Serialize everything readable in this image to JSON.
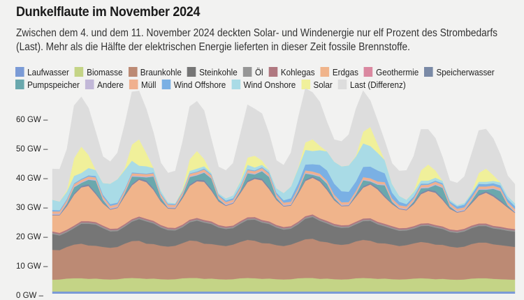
{
  "title": "Dunkelflaute im November 2024",
  "subtitle": "Zwischen dem 4. und dem 11. November 2024 deckten Solar- und Windenergie nur elf Prozent des Strombedarfs (Last). Mehr als die Hälfte der elektrischen Energie lieferten in dieser Zeit fossile Brennstoffe.",
  "legend": [
    {
      "label": "Laufwasser",
      "color": "#7b9bd6"
    },
    {
      "label": "Biomasse",
      "color": "#c4d486"
    },
    {
      "label": "Braunkohle",
      "color": "#bc8a74"
    },
    {
      "label": "Steinkohle",
      "color": "#767676"
    },
    {
      "label": "Öl",
      "color": "#969696"
    },
    {
      "label": "Kohlegas",
      "color": "#b07880"
    },
    {
      "label": "Erdgas",
      "color": "#f0b48b"
    },
    {
      "label": "Geothermie",
      "color": "#da88a0"
    },
    {
      "label": "Speicherwasser",
      "color": "#7a8aa6"
    },
    {
      "label": "Pumpspeicher",
      "color": "#6aa8ad"
    },
    {
      "label": "Andere",
      "color": "#c2b8d8"
    },
    {
      "label": "Müll",
      "color": "#f0b08e"
    },
    {
      "label": "Wind Offshore",
      "color": "#7ab0e4"
    },
    {
      "label": "Wind Onshore",
      "color": "#a9dbe6"
    },
    {
      "label": "Solar",
      "color": "#f0f09a"
    },
    {
      "label": "Last (Differenz)",
      "color": "#dddddd"
    }
  ],
  "chart_data": {
    "type": "area",
    "stacked": true,
    "title": "Dunkelflaute im November 2024",
    "xlabel": "",
    "ylabel": "",
    "x_unit": "hours since 4 Nov 2024 00:00 (3-hour steps)",
    "x": [
      0,
      3,
      6,
      9,
      12,
      15,
      18,
      21,
      24,
      27,
      30,
      33,
      36,
      39,
      42,
      45,
      48,
      51,
      54,
      57,
      60,
      63,
      66,
      69,
      72,
      75,
      78,
      81,
      84,
      87,
      90,
      93,
      96,
      99,
      102,
      105,
      108,
      111,
      114,
      117,
      120,
      123,
      126,
      129,
      132,
      135,
      138,
      141,
      144,
      147,
      150,
      153,
      156,
      159,
      162,
      165,
      168,
      171,
      174,
      177,
      180,
      183,
      186,
      189,
      192
    ],
    "y_ticks": [
      "0 GW",
      "10 GW",
      "20 GW",
      "30 GW",
      "40 GW",
      "50 GW",
      "60 GW"
    ],
    "ylim": [
      0,
      66
    ],
    "grid": false,
    "legend_position": "top",
    "series": [
      {
        "name": "Laufwasser",
        "values": [
          1.5,
          1.5,
          1.5,
          1.5,
          1.5,
          1.5,
          1.5,
          1.5,
          1.5,
          1.5,
          1.5,
          1.5,
          1.5,
          1.5,
          1.5,
          1.5,
          1.5,
          1.5,
          1.5,
          1.5,
          1.5,
          1.5,
          1.5,
          1.5,
          1.5,
          1.5,
          1.5,
          1.5,
          1.5,
          1.5,
          1.5,
          1.5,
          1.5,
          1.5,
          1.5,
          1.5,
          1.5,
          1.5,
          1.5,
          1.5,
          1.5,
          1.5,
          1.5,
          1.5,
          1.5,
          1.5,
          1.5,
          1.5,
          1.5,
          1.5,
          1.5,
          1.5,
          1.5,
          1.5,
          1.5,
          1.5,
          1.5,
          1.5,
          1.5,
          1.5,
          1.5,
          1.5,
          1.5,
          1.5,
          1.5
        ]
      },
      {
        "name": "Biomasse",
        "values": [
          4.0,
          4.1,
          4.4,
          4.5,
          4.5,
          4.3,
          4.4,
          4.2,
          4.1,
          4.2,
          4.5,
          4.6,
          4.5,
          4.3,
          4.4,
          4.2,
          4.1,
          4.2,
          4.5,
          4.6,
          4.6,
          4.3,
          4.4,
          4.2,
          4.1,
          4.2,
          4.5,
          4.6,
          4.5,
          4.3,
          4.4,
          4.2,
          4.1,
          4.2,
          4.5,
          4.6,
          4.6,
          4.3,
          4.4,
          4.2,
          4.1,
          4.2,
          4.5,
          4.6,
          4.5,
          4.3,
          4.4,
          4.2,
          4.1,
          4.2,
          4.4,
          4.5,
          4.4,
          4.2,
          4.3,
          4.1,
          4.0,
          4.1,
          4.4,
          4.5,
          4.5,
          4.3,
          4.2,
          4.1,
          4.0
        ]
      },
      {
        "name": "Braunkohle",
        "values": [
          10.2,
          10.0,
          10.8,
          11.5,
          11.8,
          11.4,
          11.2,
          11.0,
          10.8,
          11.0,
          11.8,
          12.6,
          12.8,
          12.0,
          11.8,
          11.4,
          11.2,
          11.4,
          12.0,
          12.8,
          12.6,
          12.0,
          11.8,
          11.6,
          11.4,
          11.8,
          12.4,
          13.0,
          12.8,
          12.2,
          12.0,
          11.6,
          11.4,
          11.8,
          12.4,
          13.2,
          13.4,
          12.8,
          12.4,
          12.0,
          11.8,
          12.0,
          12.6,
          13.0,
          12.8,
          12.2,
          12.0,
          11.8,
          11.4,
          11.6,
          12.0,
          12.4,
          12.2,
          11.8,
          11.6,
          11.2,
          11.0,
          11.2,
          11.8,
          12.2,
          12.2,
          11.8,
          11.6,
          11.4,
          11.2
        ]
      },
      {
        "name": "Steinkohle",
        "values": [
          5.4,
          5.0,
          5.0,
          5.6,
          6.8,
          7.4,
          7.2,
          6.4,
          5.6,
          5.4,
          5.8,
          6.6,
          7.4,
          7.6,
          7.0,
          6.2,
          5.6,
          5.2,
          5.4,
          6.2,
          7.0,
          7.2,
          6.8,
          6.0,
          5.8,
          5.6,
          6.2,
          6.8,
          7.2,
          7.0,
          6.6,
          6.0,
          5.6,
          5.4,
          6.0,
          7.0,
          7.4,
          7.0,
          6.4,
          6.0,
          5.8,
          5.6,
          5.8,
          6.4,
          6.8,
          6.4,
          5.8,
          5.4,
          5.2,
          5.0,
          5.0,
          5.4,
          5.8,
          5.8,
          5.4,
          5.0,
          5.0,
          5.2,
          5.4,
          5.6,
          5.6,
          5.4,
          5.4,
          5.2,
          5.2
        ]
      },
      {
        "name": "Öl",
        "values": [
          0.4,
          0.4,
          0.4,
          0.4,
          0.4,
          0.4,
          0.4,
          0.4,
          0.4,
          0.4,
          0.4,
          0.4,
          0.4,
          0.4,
          0.4,
          0.4,
          0.4,
          0.4,
          0.4,
          0.4,
          0.4,
          0.4,
          0.4,
          0.4,
          0.4,
          0.4,
          0.4,
          0.4,
          0.4,
          0.4,
          0.4,
          0.4,
          0.4,
          0.4,
          0.4,
          0.4,
          0.4,
          0.4,
          0.4,
          0.4,
          0.4,
          0.4,
          0.4,
          0.4,
          0.4,
          0.4,
          0.4,
          0.4,
          0.4,
          0.4,
          0.4,
          0.4,
          0.4,
          0.4,
          0.4,
          0.4,
          0.4,
          0.4,
          0.4,
          0.4,
          0.4,
          0.4,
          0.4,
          0.4,
          0.4
        ]
      },
      {
        "name": "Kohlegas",
        "values": [
          0.5,
          0.5,
          0.5,
          0.5,
          0.5,
          0.5,
          0.5,
          0.5,
          0.5,
          0.5,
          0.5,
          0.5,
          0.5,
          0.5,
          0.5,
          0.5,
          0.5,
          0.5,
          0.5,
          0.5,
          0.5,
          0.5,
          0.5,
          0.5,
          0.5,
          0.5,
          0.5,
          0.5,
          0.5,
          0.5,
          0.5,
          0.5,
          0.5,
          0.5,
          0.5,
          0.5,
          0.5,
          0.5,
          0.5,
          0.5,
          0.5,
          0.5,
          0.5,
          0.5,
          0.5,
          0.5,
          0.5,
          0.5,
          0.5,
          0.5,
          0.5,
          0.5,
          0.5,
          0.5,
          0.5,
          0.5,
          0.5,
          0.5,
          0.5,
          0.5,
          0.5,
          0.5,
          0.5,
          0.5,
          0.5
        ]
      },
      {
        "name": "Erdgas",
        "values": [
          5.5,
          6.0,
          8.0,
          10.5,
          11.5,
          12.0,
          9.5,
          7.5,
          6.5,
          7.0,
          9.5,
          11.5,
          12.5,
          12.5,
          10.5,
          8.0,
          6.5,
          6.5,
          9.0,
          11.5,
          12.5,
          13.0,
          10.5,
          8.0,
          7.0,
          7.5,
          9.5,
          12.0,
          13.0,
          13.5,
          11.0,
          8.5,
          7.0,
          7.0,
          9.5,
          12.0,
          12.5,
          12.5,
          10.5,
          8.0,
          6.5,
          6.5,
          8.5,
          10.5,
          11.5,
          11.0,
          9.0,
          7.5,
          6.5,
          6.0,
          7.5,
          10.0,
          11.0,
          11.0,
          9.0,
          7.0,
          6.0,
          6.0,
          7.5,
          9.5,
          10.5,
          10.0,
          8.5,
          7.0,
          5.5
        ]
      },
      {
        "name": "Geothermie",
        "values": [
          0.02,
          0.02,
          0.02,
          0.02,
          0.02,
          0.02,
          0.02,
          0.02,
          0.02,
          0.02,
          0.02,
          0.02,
          0.02,
          0.02,
          0.02,
          0.02,
          0.02,
          0.02,
          0.02,
          0.02,
          0.02,
          0.02,
          0.02,
          0.02,
          0.02,
          0.02,
          0.02,
          0.02,
          0.02,
          0.02,
          0.02,
          0.02,
          0.02,
          0.02,
          0.02,
          0.02,
          0.02,
          0.02,
          0.02,
          0.02,
          0.02,
          0.02,
          0.02,
          0.02,
          0.02,
          0.02,
          0.02,
          0.02,
          0.02,
          0.02,
          0.02,
          0.02,
          0.02,
          0.02,
          0.02,
          0.02,
          0.02,
          0.02,
          0.02,
          0.02,
          0.02,
          0.02,
          0.02,
          0.02,
          0.02
        ]
      },
      {
        "name": "Speicherwasser",
        "values": [
          0.2,
          0.2,
          0.4,
          0.5,
          0.5,
          0.6,
          0.6,
          0.3,
          0.2,
          0.2,
          0.4,
          0.5,
          0.5,
          0.6,
          0.6,
          0.3,
          0.2,
          0.2,
          0.4,
          0.5,
          0.5,
          0.6,
          0.6,
          0.3,
          0.2,
          0.2,
          0.4,
          0.5,
          0.5,
          0.6,
          0.6,
          0.3,
          0.2,
          0.2,
          0.4,
          0.5,
          0.5,
          0.6,
          0.6,
          0.3,
          0.2,
          0.2,
          0.4,
          0.5,
          0.5,
          0.6,
          0.6,
          0.3,
          0.2,
          0.2,
          0.4,
          0.5,
          0.5,
          0.6,
          0.6,
          0.3,
          0.2,
          0.2,
          0.4,
          0.5,
          0.5,
          0.6,
          0.6,
          0.3,
          0.2
        ]
      },
      {
        "name": "Pumpspeicher",
        "values": [
          0.0,
          0.0,
          0.5,
          2.0,
          1.0,
          1.5,
          4.0,
          1.0,
          0.0,
          0.0,
          0.5,
          2.5,
          0.5,
          1.0,
          4.0,
          1.0,
          0.0,
          0.0,
          0.5,
          2.5,
          1.5,
          2.5,
          3.5,
          0.5,
          0.0,
          0.0,
          0.5,
          2.5,
          1.0,
          2.5,
          3.5,
          0.5,
          0.0,
          0.0,
          0.5,
          2.0,
          0.5,
          1.0,
          1.5,
          0.5,
          0.0,
          0.0,
          0.5,
          2.0,
          0.5,
          1.0,
          3.5,
          0.5,
          0.0,
          0.0,
          0.5,
          1.5,
          0.5,
          2.0,
          3.5,
          0.5,
          0.0,
          0.0,
          0.5,
          1.5,
          0.5,
          2.0,
          3.0,
          0.5,
          0.0
        ]
      },
      {
        "name": "Andere",
        "values": [
          0.3,
          0.3,
          0.3,
          0.3,
          0.3,
          0.3,
          0.3,
          0.3,
          0.3,
          0.3,
          0.3,
          0.3,
          0.3,
          0.3,
          0.3,
          0.3,
          0.3,
          0.3,
          0.3,
          0.3,
          0.3,
          0.3,
          0.3,
          0.3,
          0.3,
          0.3,
          0.3,
          0.3,
          0.3,
          0.3,
          0.3,
          0.3,
          0.3,
          0.3,
          0.3,
          0.3,
          0.3,
          0.3,
          0.3,
          0.3,
          0.3,
          0.3,
          0.3,
          0.3,
          0.3,
          0.3,
          0.3,
          0.3,
          0.3,
          0.3,
          0.3,
          0.3,
          0.3,
          0.3,
          0.3,
          0.3,
          0.3,
          0.3,
          0.3,
          0.3,
          0.3,
          0.3,
          0.3,
          0.3,
          0.3
        ]
      },
      {
        "name": "Müll",
        "values": [
          0.8,
          0.8,
          0.8,
          0.8,
          0.8,
          0.8,
          0.8,
          0.8,
          0.8,
          0.8,
          0.8,
          0.8,
          0.8,
          0.8,
          0.8,
          0.8,
          0.8,
          0.8,
          0.8,
          0.8,
          0.8,
          0.8,
          0.8,
          0.8,
          0.8,
          0.8,
          0.8,
          0.8,
          0.8,
          0.8,
          0.8,
          0.8,
          0.8,
          0.8,
          0.8,
          0.8,
          0.8,
          0.8,
          0.8,
          0.8,
          0.8,
          0.8,
          0.8,
          0.8,
          0.8,
          0.8,
          0.8,
          0.8,
          0.8,
          0.8,
          0.8,
          0.8,
          0.8,
          0.8,
          0.8,
          0.8,
          0.8,
          0.8,
          0.8,
          0.8,
          0.8,
          0.8,
          0.8,
          0.8,
          0.8
        ]
      },
      {
        "name": "Wind Offshore",
        "values": [
          0.5,
          0.4,
          0.4,
          0.3,
          0.3,
          0.4,
          0.5,
          0.6,
          0.6,
          0.5,
          0.4,
          0.3,
          0.2,
          0.2,
          0.3,
          0.3,
          0.3,
          0.3,
          0.2,
          0.2,
          0.2,
          0.3,
          0.3,
          0.4,
          0.5,
          0.5,
          0.4,
          0.3,
          0.3,
          0.3,
          0.4,
          0.6,
          0.8,
          1.2,
          1.6,
          2.0,
          2.5,
          3.0,
          3.5,
          3.8,
          3.8,
          3.5,
          3.2,
          3.5,
          4.0,
          3.8,
          3.0,
          2.0,
          1.2,
          0.8,
          0.6,
          0.5,
          0.4,
          0.4,
          0.5,
          0.6,
          0.8,
          0.9,
          1.0,
          0.9,
          0.8,
          0.8,
          0.9,
          1.0,
          1.0
        ]
      },
      {
        "name": "Wind Onshore",
        "values": [
          3.5,
          3.0,
          2.5,
          2.5,
          2.0,
          2.5,
          2.0,
          4.0,
          7.0,
          8.0,
          6.5,
          4.0,
          2.5,
          2.5,
          1.5,
          1.0,
          0.5,
          0.3,
          0.5,
          0.8,
          1.0,
          0.8,
          0.5,
          0.5,
          0.8,
          1.0,
          1.5,
          1.5,
          1.0,
          0.8,
          0.8,
          1.5,
          2.5,
          4.0,
          5.0,
          5.0,
          4.5,
          5.0,
          6.5,
          7.5,
          8.5,
          9.0,
          8.5,
          8.0,
          7.0,
          6.0,
          4.5,
          3.0,
          2.0,
          1.5,
          1.5,
          1.0,
          1.0,
          1.0,
          0.8,
          0.6,
          0.5,
          0.6,
          0.6,
          0.7,
          0.8,
          0.8,
          1.0,
          1.0,
          1.0
        ]
      },
      {
        "name": "Solar",
        "values": [
          0,
          0,
          0.5,
          6.0,
          9.0,
          4.5,
          0,
          0,
          0,
          0,
          0.5,
          5.5,
          9.0,
          4.5,
          0,
          0,
          0,
          0,
          0.5,
          4.0,
          6.0,
          2.5,
          0,
          0,
          0,
          0,
          0.3,
          2.5,
          4.0,
          1.5,
          0,
          0,
          0,
          0,
          0.3,
          2.5,
          4.0,
          1.5,
          0,
          0,
          0,
          0,
          0.3,
          4.0,
          6.5,
          3.0,
          0,
          0,
          0,
          0,
          0.3,
          3.5,
          5.5,
          2.5,
          0,
          0,
          0,
          0,
          0.3,
          3.0,
          4.5,
          2.0,
          0,
          0,
          0
        ]
      },
      {
        "name": "Last (Differenz)",
        "values": [
          10.5,
          11.0,
          14.0,
          18.0,
          17.0,
          16.0,
          13.0,
          9.0,
          7.5,
          9.0,
          15.0,
          18.0,
          16.5,
          15.0,
          12.0,
          9.5,
          10.0,
          11.0,
          16.0,
          18.0,
          17.0,
          16.5,
          11.5,
          9.0,
          9.5,
          11.0,
          16.0,
          18.0,
          16.0,
          16.0,
          12.5,
          9.5,
          9.5,
          11.5,
          17.0,
          18.5,
          16.0,
          15.0,
          10.0,
          7.5,
          8.5,
          10.5,
          16.0,
          14.0,
          9.0,
          8.0,
          6.5,
          7.0,
          8.5,
          10.0,
          12.0,
          14.0,
          12.0,
          11.0,
          8.0,
          6.5,
          7.5,
          9.0,
          13.0,
          14.5,
          13.5,
          12.5,
          9.5,
          7.0,
          6.5
        ]
      }
    ]
  }
}
